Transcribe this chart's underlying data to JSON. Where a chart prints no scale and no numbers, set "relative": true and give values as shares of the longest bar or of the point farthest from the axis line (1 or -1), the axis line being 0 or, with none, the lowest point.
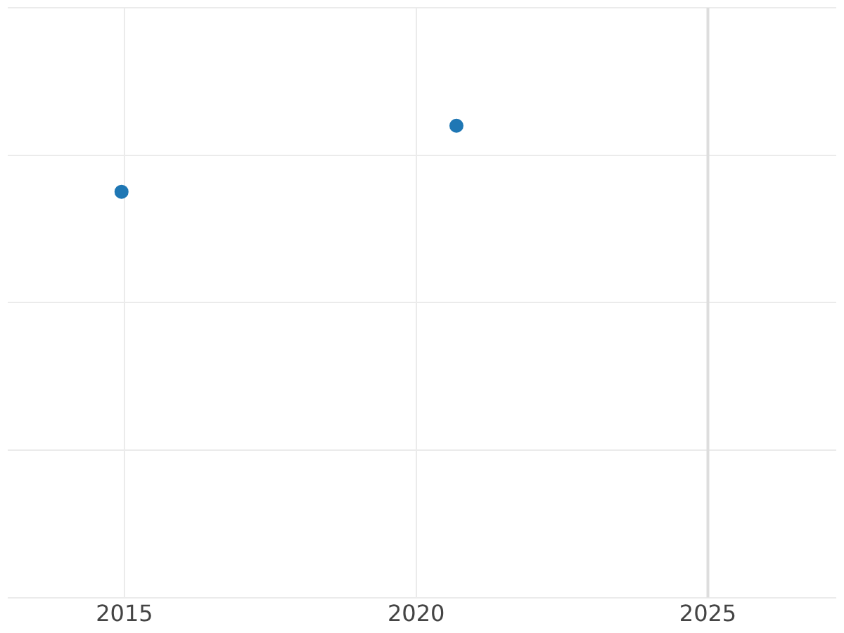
{
  "chart_data": {
    "type": "scatter",
    "relative": true,
    "marker": "circle",
    "grid": true,
    "x": [
      2014.95,
      2020.69
    ],
    "series": [
      {
        "color": "#1f77b4",
        "values": [
          0.86,
          1
        ]
      }
    ],
    "xlim": [
      2013,
      2027.2
    ],
    "xticks": [
      2015,
      2020,
      2025
    ],
    "ref_lines": [
      {
        "axis": "x",
        "value": 2025,
        "color": "#dddddd"
      }
    ]
  }
}
